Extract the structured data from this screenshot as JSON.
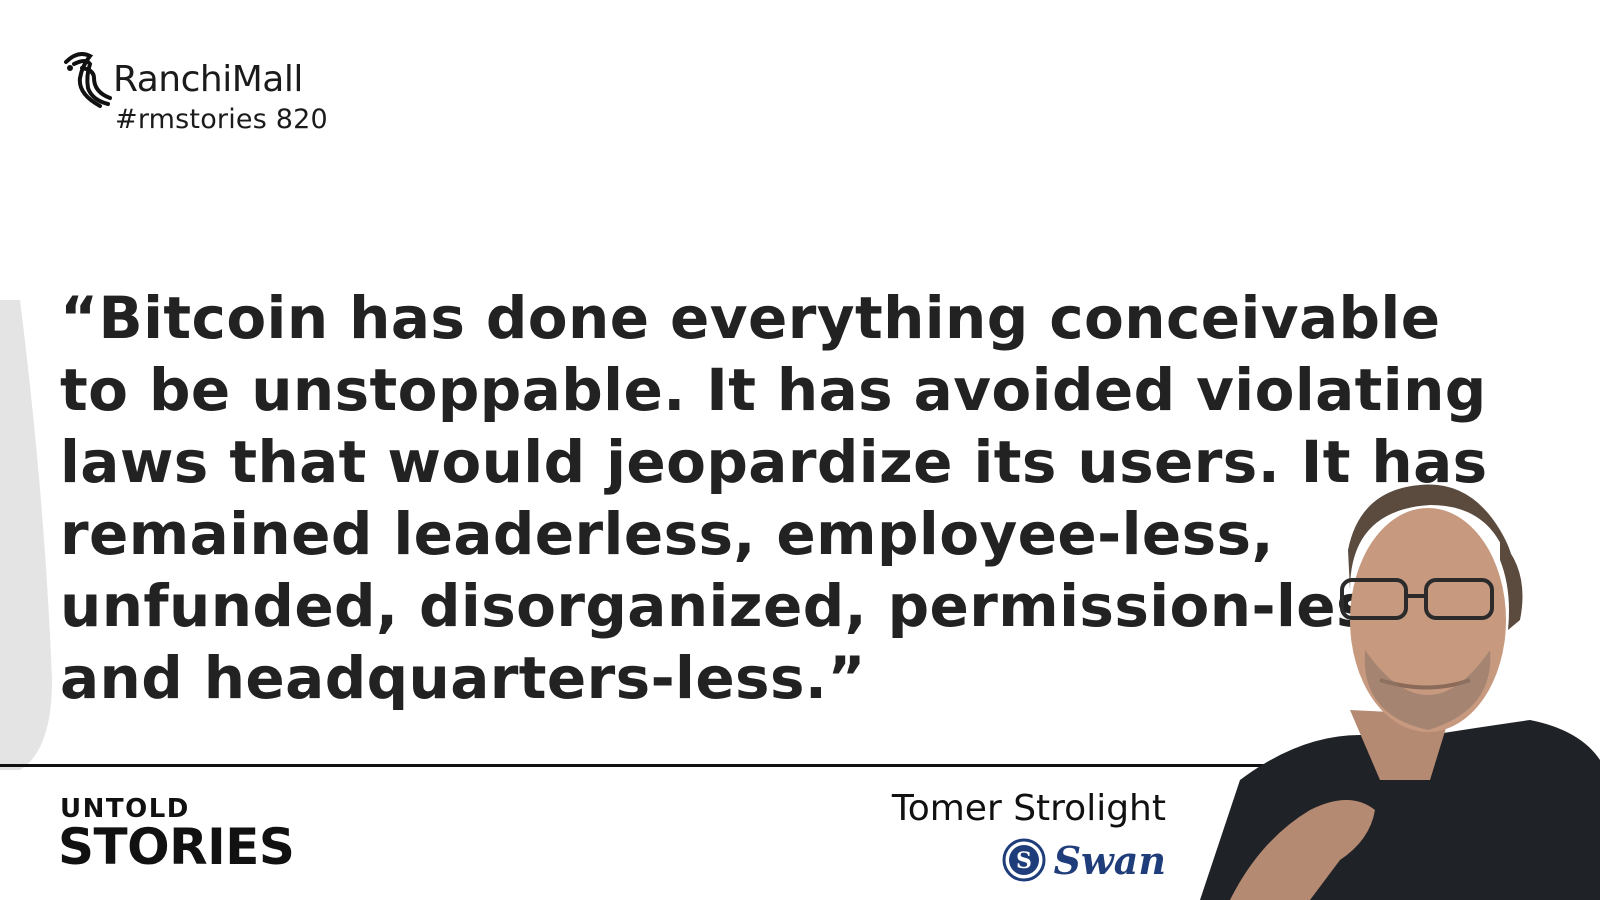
{
  "brand": {
    "name": "RanchiMall",
    "tag": "#rmstories 820"
  },
  "quote": {
    "lines": [
      "“Bitcoin has done everything conceivable",
      "to be unstoppable. It has avoided violating",
      "laws that would jeopardize its users. It has",
      "remained leaderless, employee-less,",
      "unfunded, disorganized, permission-less,",
      "and headquarters-less.”"
    ]
  },
  "series": {
    "line1": "UNTOLD",
    "line2": "STORIES"
  },
  "author": {
    "name": "Tomer Strolight",
    "company": "Swan"
  },
  "icons": {
    "brand_logo": "ranchimall-seahorse-logo",
    "company_logo": "swan-s-logo"
  },
  "colors": {
    "text": "#222222",
    "company": "#1f3d7a",
    "accent": "#e4e4e4"
  }
}
